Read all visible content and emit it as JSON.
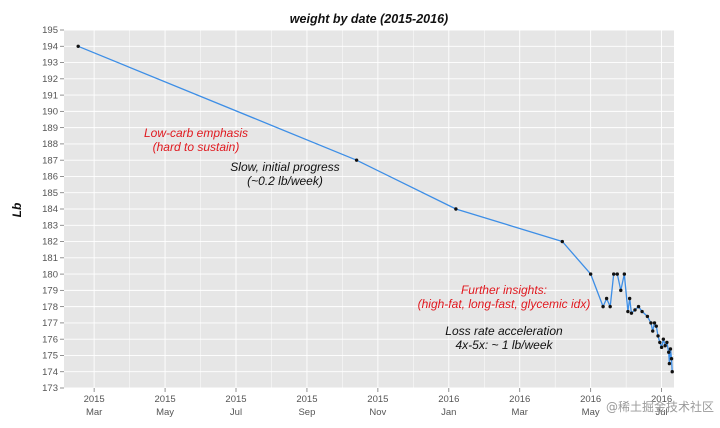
{
  "chart_data": {
    "type": "line",
    "title": "weight by date (2015-2016)",
    "ylabel": "Lb",
    "xlabel": "",
    "ylim": [
      173,
      195
    ],
    "y_ticks": [
      173,
      174,
      175,
      176,
      177,
      178,
      179,
      180,
      181,
      182,
      183,
      184,
      185,
      186,
      187,
      188,
      189,
      190,
      191,
      192,
      193,
      194,
      195
    ],
    "x_ticks": [
      {
        "year": "2015",
        "month": "Mar",
        "t": 1
      },
      {
        "year": "2015",
        "month": "May",
        "t": 3
      },
      {
        "year": "2015",
        "month": "Jul",
        "t": 5
      },
      {
        "year": "2015",
        "month": "Sep",
        "t": 7
      },
      {
        "year": "2015",
        "month": "Nov",
        "t": 9
      },
      {
        "year": "2016",
        "month": "Jan",
        "t": 11
      },
      {
        "year": "2016",
        "month": "Mar",
        "t": 13
      },
      {
        "year": "2016",
        "month": "May",
        "t": 15
      },
      {
        "year": "2016",
        "month": "Jul",
        "t": 17
      }
    ],
    "xlim": [
      0.15,
      17.35
    ],
    "grid": true,
    "series": [
      {
        "name": "weight",
        "color": "#3d8ee6",
        "x": [
          0.55,
          8.4,
          11.2,
          14.2,
          15.0,
          15.35,
          15.45,
          15.55,
          15.65,
          15.75,
          15.85,
          15.95,
          16.05,
          16.1,
          16.15,
          16.25,
          16.35,
          16.45,
          16.6,
          16.7,
          16.75,
          16.8,
          16.85,
          16.9,
          16.95,
          17.0,
          17.05,
          17.1,
          17.15,
          17.2,
          17.22,
          17.25,
          17.28,
          17.3
        ],
        "values": [
          194,
          187,
          184,
          182,
          180,
          178,
          178.5,
          178,
          180,
          180,
          179,
          180,
          177.7,
          178.5,
          177.6,
          177.8,
          178,
          177.7,
          177.4,
          177,
          176.5,
          177,
          176.8,
          176.2,
          175.8,
          175.5,
          176,
          175.6,
          175.8,
          175.2,
          174.5,
          175.4,
          174.8,
          174
        ]
      }
    ],
    "annotations": [
      {
        "lines": [
          "Low-carb emphasis",
          "(hard to sustain)"
        ],
        "color": "red"
      },
      {
        "lines": [
          "Slow, initial progress",
          "(~0.2 lb/week)"
        ],
        "color": "black"
      },
      {
        "lines": [
          "Further insights:",
          "(high-fat, long-fast, glycemic idx)"
        ],
        "color": "red"
      },
      {
        "lines": [
          "Loss rate acceleration",
          "4x-5x: ~ 1 lb/week"
        ],
        "color": "black"
      }
    ]
  },
  "watermark": "@稀土掘金技术社区"
}
